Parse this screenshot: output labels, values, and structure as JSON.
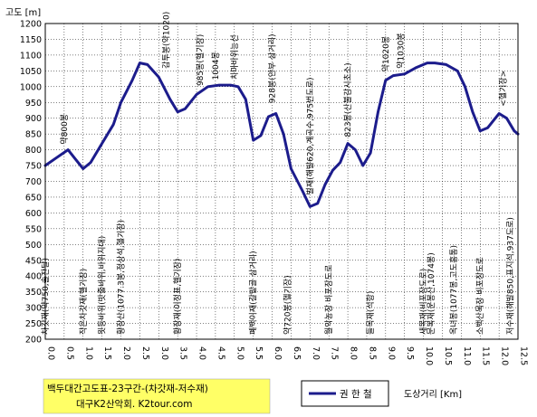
{
  "chart_data": {
    "type": "line",
    "ylabel": "고도 [m]",
    "xlabel": "도상거리 [Km]",
    "ylim": [
      200,
      1200
    ],
    "yticks": [
      200,
      250,
      300,
      350,
      400,
      450,
      500,
      550,
      600,
      650,
      700,
      750,
      800,
      850,
      900,
      950,
      1000,
      1050,
      1100,
      1150,
      1200
    ],
    "xlim": [
      0.0,
      12.5
    ],
    "xticks": [
      "0.0",
      "0.5",
      "1.0",
      "1.5",
      "2.0",
      "2.5",
      "3.0",
      "3.5",
      "4.0",
      "4.5",
      "5.0",
      "5.5",
      "6.0",
      "6.5",
      "7.0",
      "7.5",
      "8.0",
      "8.5",
      "9.0",
      "9.5",
      "10.0",
      "10.5",
      "11.0",
      "11.5",
      "12.0",
      "12.5"
    ],
    "grid": true,
    "colors": {
      "line": "#1c1c8c",
      "infobox_bg": "#ffff66",
      "grid": "#000000"
    },
    "series": [
      {
        "name": "권 한 철",
        "x": [
          0.0,
          0.3,
          0.6,
          0.8,
          1.0,
          1.2,
          1.5,
          1.8,
          2.0,
          2.3,
          2.5,
          2.7,
          3.0,
          3.3,
          3.5,
          3.7,
          4.0,
          4.3,
          4.6,
          4.9,
          5.1,
          5.3,
          5.5,
          5.7,
          5.9,
          6.1,
          6.3,
          6.5,
          6.8,
          7.0,
          7.2,
          7.4,
          7.6,
          7.8,
          8.0,
          8.2,
          8.4,
          8.6,
          8.8,
          9.0,
          9.2,
          9.5,
          9.8,
          10.1,
          10.3,
          10.6,
          10.9,
          11.1,
          11.3,
          11.5,
          11.7,
          12.0,
          12.2,
          12.4,
          12.5
        ],
        "y": [
          750,
          775,
          800,
          770,
          740,
          760,
          820,
          880,
          950,
          1020,
          1075,
          1070,
          1030,
          960,
          920,
          930,
          975,
          1000,
          1005,
          1005,
          1000,
          960,
          830,
          845,
          905,
          915,
          850,
          740,
          670,
          620,
          630,
          690,
          735,
          760,
          820,
          800,
          750,
          790,
          920,
          1020,
          1035,
          1040,
          1060,
          1075,
          1075,
          1070,
          1050,
          1000,
          920,
          860,
          870,
          915,
          900,
          860,
          850
        ]
      }
    ],
    "annotations": [
      {
        "x": 0.0,
        "y": 200,
        "side": "below",
        "text": "차갓재(약750,솔잔달)"
      },
      {
        "x": 0.5,
        "y": 800,
        "side": "above",
        "text": "약800봉"
      },
      {
        "x": 1.0,
        "y": 200,
        "side": "below",
        "text": "작은차갓재(헬기장)"
      },
      {
        "x": 1.5,
        "y": 200,
        "side": "below",
        "text": "묏등바위(밧줄바위,바위지대)"
      },
      {
        "x": 2.0,
        "y": 200,
        "side": "below",
        "text": "황장산(1077.3봉,정상석,헬기장)"
      },
      {
        "x": 3.2,
        "y": 1040,
        "side": "above",
        "text": "감투봉(약1020)"
      },
      {
        "x": 3.5,
        "y": 200,
        "side": "below",
        "text": "황장재(이정표,헬기장)"
      },
      {
        "x": 4.1,
        "y": 985,
        "side": "above",
        "text": "985봉(헬기장)"
      },
      {
        "x": 4.5,
        "y": 1004,
        "side": "above",
        "text": "1004봉"
      },
      {
        "x": 5.0,
        "y": 1005,
        "side": "above",
        "text": "치마바위능선"
      },
      {
        "x": 5.5,
        "y": 200,
        "side": "below",
        "text": "폐백이재(갈밭골 삼거리)"
      },
      {
        "x": 6.0,
        "y": 930,
        "side": "above",
        "text": "928봉(안부 삼거리)"
      },
      {
        "x": 6.4,
        "y": 200,
        "side": "below",
        "text": "약720봉(헬기장)"
      },
      {
        "x": 7.0,
        "y": 640,
        "side": "above",
        "text": "벌재(해발620,계곡수,975번도로)"
      },
      {
        "x": 7.5,
        "y": 200,
        "side": "below",
        "text": "월악농장 비포장도로"
      },
      {
        "x": 8.0,
        "y": 823,
        "side": "above",
        "text": "823봉(산불감시초소)"
      },
      {
        "x": 8.6,
        "y": 200,
        "side": "below",
        "text": "들목재(석항)"
      },
      {
        "x": 9.0,
        "y": 1030,
        "side": "above",
        "text": "약1020봉"
      },
      {
        "x": 9.4,
        "y": 1040,
        "side": "above",
        "text": "약1030봉"
      },
      {
        "x": 10.0,
        "y": 200,
        "side": "below",
        "text": "새목재(비포장도로)"
      },
      {
        "x": 10.2,
        "y": 200,
        "side": "below",
        "text": "문복재(운봉산,1074봉)"
      },
      {
        "x": 10.8,
        "y": 200,
        "side": "below",
        "text": "옥녀봉(1077봉,고도흥통)"
      },
      {
        "x": 11.5,
        "y": 200,
        "side": "below",
        "text": "소백산목장 비포장도로"
      },
      {
        "x": 12.1,
        "y": 920,
        "side": "above",
        "text": "<헬기장>"
      },
      {
        "x": 12.3,
        "y": 200,
        "side": "below",
        "text": "저수재(해발850,표지석,937도로)"
      }
    ]
  },
  "info_box": {
    "line1": "백두대간고도표-23구간-(차갓재-저수재)",
    "line2": "대구K2산악회. K2tour.com"
  },
  "legend": {
    "label": "권 한 철"
  }
}
